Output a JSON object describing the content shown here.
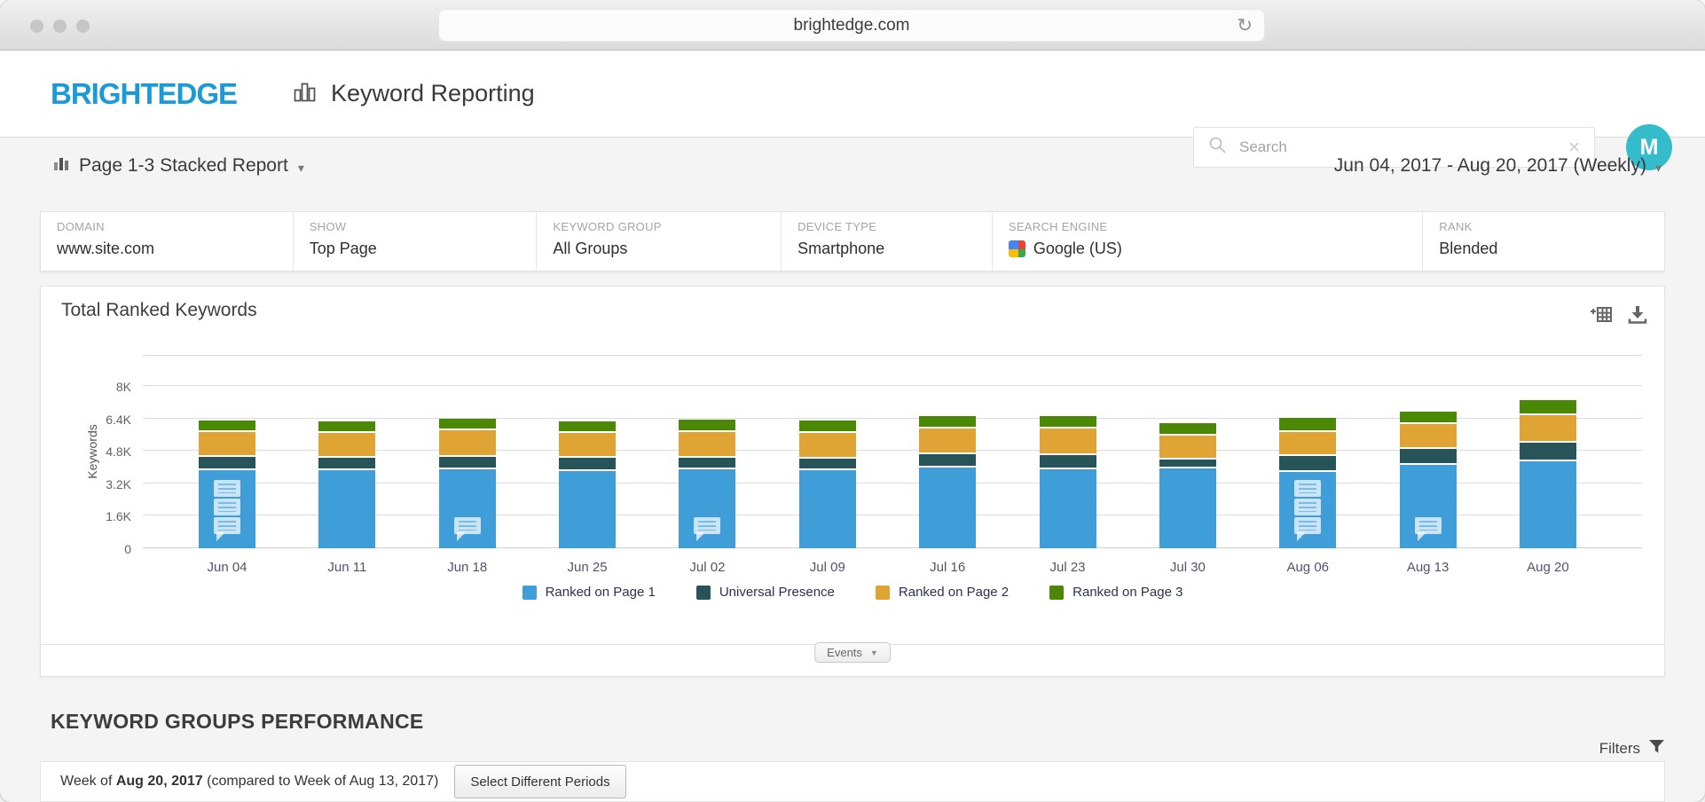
{
  "browser": {
    "url": "brightedge.com"
  },
  "icons": {
    "reload": "↻",
    "clear": "×",
    "caret_down": "▾",
    "caret_solid": "▼"
  },
  "header": {
    "logo": "BRIGHTEDGE",
    "app_title": "Keyword Reporting",
    "search_placeholder": "Search",
    "avatar_initial": "M"
  },
  "report_bar": {
    "title": "Page 1-3 Stacked Report",
    "date_range": "Jun 04, 2017 - Aug 20, 2017 (Weekly)"
  },
  "filter_bar": [
    {
      "label": "DOMAIN",
      "value": "www.site.com"
    },
    {
      "label": "SHOW",
      "value": "Top Page"
    },
    {
      "label": "KEYWORD GROUP",
      "value": "All Groups"
    },
    {
      "label": "DEVICE TYPE",
      "value": "Smartphone"
    },
    {
      "label": "SEARCH ENGINE",
      "value": "Google (US)",
      "icon": "google-icon"
    },
    {
      "label": "RANK",
      "value": "Blended"
    }
  ],
  "chart_panel": {
    "title": "Total Ranked Keywords"
  },
  "events": {
    "label": "Events"
  },
  "section": {
    "title": "KEYWORD GROUPS PERFORMANCE"
  },
  "filters_link": {
    "label": "Filters"
  },
  "bottom_bar": {
    "prefix": "Week of ",
    "period": "Aug 20, 2017",
    "suffix": " (compared to Week of Aug 13, 2017)",
    "button_label": "Select Different Periods"
  },
  "colors": {
    "brand_blue": "#1b9ad8",
    "avatar_teal": "#34bccb",
    "page1_blue": "#3f9dd8",
    "universal_teal": "#265458",
    "page2_orange": "#dfa434",
    "page3_green": "#4a8806"
  },
  "chart_data": {
    "type": "bar",
    "stacked": true,
    "title": "Total Ranked Keywords",
    "ylabel": "Keywords",
    "xlabel": "",
    "grid": true,
    "legend_position": "bottom",
    "yticks": [
      "0",
      "1.6K",
      "3.2K",
      "4.8K",
      "6.4K",
      "8K"
    ],
    "ytick_values": [
      0,
      1600,
      3200,
      4800,
      6400,
      8000
    ],
    "ylim": [
      0,
      9550
    ],
    "categories": [
      "Jun 04",
      "Jun 11",
      "Jun 18",
      "Jun 25",
      "Jul 02",
      "Jul 09",
      "Jul 16",
      "Jul 23",
      "Jul 30",
      "Aug 06",
      "Aug 13",
      "Aug 20"
    ],
    "series": [
      {
        "name": "Ranked on Page 1",
        "color": "#3f9dd8",
        "values": [
          3850,
          3850,
          3900,
          3820,
          3880,
          3840,
          4000,
          3910,
          3940,
          3780,
          4100,
          4310
        ]
      },
      {
        "name": "Universal Presence",
        "color": "#265458",
        "values": [
          650,
          620,
          620,
          640,
          610,
          580,
          650,
          700,
          430,
          790,
          800,
          920
        ]
      },
      {
        "name": "Ranked on Page 2",
        "color": "#dfa434",
        "values": [
          1260,
          1220,
          1310,
          1250,
          1250,
          1260,
          1270,
          1310,
          1200,
          1190,
          1220,
          1330
        ]
      },
      {
        "name": "Ranked on Page 3",
        "color": "#4a8806",
        "values": [
          570,
          580,
          570,
          540,
          610,
          610,
          620,
          620,
          610,
          690,
          620,
          770
        ]
      }
    ],
    "annotations": [
      {
        "category": "Jun 04",
        "type": "multi"
      },
      {
        "category": "Jun 18",
        "type": "single"
      },
      {
        "category": "Jul 02",
        "type": "single"
      },
      {
        "category": "Aug 06",
        "type": "multi"
      },
      {
        "category": "Aug 13",
        "type": "single"
      }
    ]
  }
}
